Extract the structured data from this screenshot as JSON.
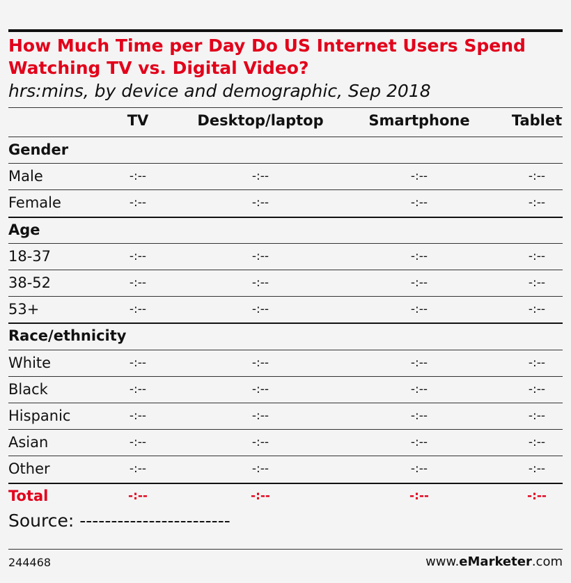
{
  "chart_data": {
    "type": "table",
    "title": "How Much Time per Day Do US Internet Users Spend Watching TV vs. Digital Video?",
    "subtitle": "hrs:mins, by device and demographic, Sep 2018",
    "columns": [
      "TV",
      "Desktop/laptop",
      "Smartphone",
      "Tablet"
    ],
    "rows": [
      {
        "label": "Gender",
        "section": true,
        "values": []
      },
      {
        "label": "Male",
        "values": [
          "-:--",
          "-:--",
          "-:--",
          "-:--"
        ]
      },
      {
        "label": "Female",
        "values": [
          "-:--",
          "-:--",
          "-:--",
          "-:--"
        ]
      },
      {
        "label": "Age",
        "section": true,
        "values": []
      },
      {
        "label": "18-37",
        "values": [
          "-:--",
          "-:--",
          "-:--",
          "-:--"
        ]
      },
      {
        "label": "38-52",
        "values": [
          "-:--",
          "-:--",
          "-:--",
          "-:--"
        ]
      },
      {
        "label": "53+",
        "values": [
          "-:--",
          "-:--",
          "-:--",
          "-:--"
        ]
      },
      {
        "label": "Race/ethnicity",
        "section": true,
        "values": []
      },
      {
        "label": "White",
        "values": [
          "-:--",
          "-:--",
          "-:--",
          "-:--"
        ]
      },
      {
        "label": "Black",
        "values": [
          "-:--",
          "-:--",
          "-:--",
          "-:--"
        ]
      },
      {
        "label": "Hispanic",
        "values": [
          "-:--",
          "-:--",
          "-:--",
          "-:--"
        ]
      },
      {
        "label": "Asian",
        "values": [
          "-:--",
          "-:--",
          "-:--",
          "-:--"
        ]
      },
      {
        "label": "Other",
        "values": [
          "-:--",
          "-:--",
          "-:--",
          "-:--"
        ]
      },
      {
        "label": "Total",
        "total": true,
        "values": [
          "-:--",
          "-:--",
          "-:--",
          "-:--"
        ]
      }
    ],
    "source": "Source: ------------------------",
    "footer_id": "244468",
    "footer_site_prefix": "www.",
    "footer_site_brand": "eMarketer",
    "footer_site_suffix": ".com",
    "accent_color": "#e2001a"
  }
}
